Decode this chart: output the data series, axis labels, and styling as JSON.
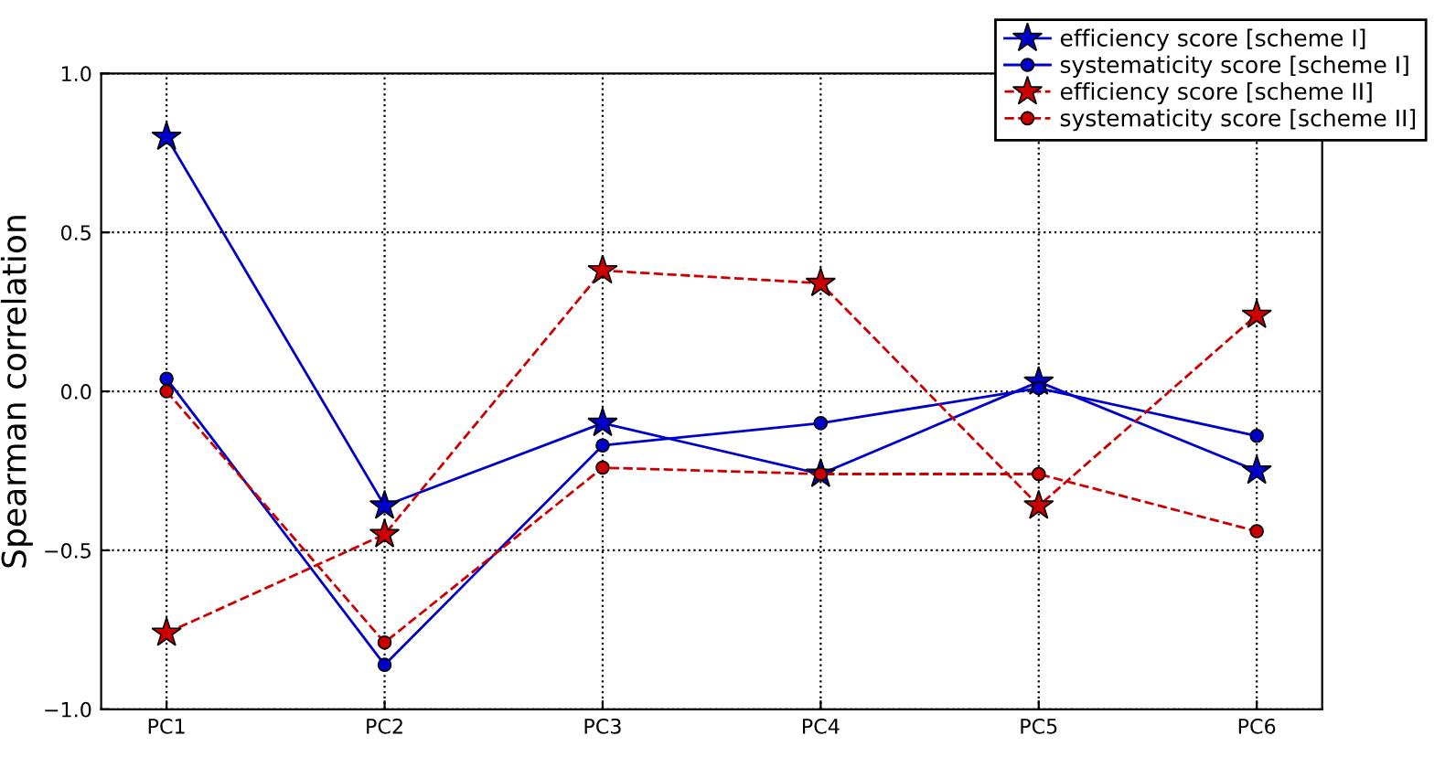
{
  "chart_data": {
    "type": "line",
    "ylabel": "Spearman correlation",
    "categories": [
      "PC1",
      "PC2",
      "PC3",
      "PC4",
      "PC5",
      "PC6"
    ],
    "series": [
      {
        "name": "efficiency score [scheme I]",
        "color": "#0000cc",
        "marker": "star",
        "line_style": "solid",
        "values": [
          0.8,
          -0.36,
          -0.1,
          -0.26,
          0.03,
          -0.25
        ]
      },
      {
        "name": "systematicity score [scheme I]",
        "color": "#0000cc",
        "marker": "circle",
        "line_style": "solid",
        "values": [
          0.04,
          -0.86,
          -0.17,
          -0.1,
          0.01,
          -0.14
        ]
      },
      {
        "name": "efficiency score [scheme II]",
        "color": "#cc0000",
        "marker": "star",
        "line_style": "dashed",
        "values": [
          -0.76,
          -0.45,
          0.38,
          0.34,
          -0.36,
          0.24
        ]
      },
      {
        "name": "systematicity score [scheme II]",
        "color": "#cc0000",
        "marker": "circle",
        "line_style": "dashed",
        "values": [
          0.0,
          -0.79,
          -0.24,
          -0.26,
          -0.26,
          -0.44
        ]
      }
    ],
    "ylim": [
      -1.0,
      1.0
    ],
    "yticks": [
      {
        "value": -1.0,
        "label": "−1.0"
      },
      {
        "value": -0.5,
        "label": "−0.5"
      },
      {
        "value": 0.0,
        "label": "0.0"
      },
      {
        "value": 0.5,
        "label": "0.5"
      },
      {
        "value": 1.0,
        "label": "1.0"
      }
    ],
    "grid": true,
    "legend": "top right"
  }
}
